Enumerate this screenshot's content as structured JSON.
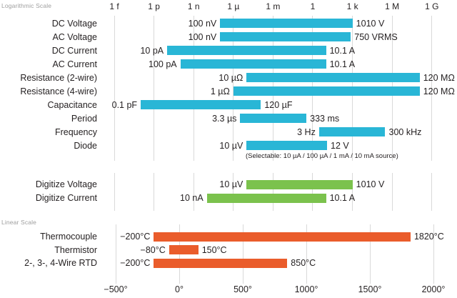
{
  "chart_data": {
    "type": "bar",
    "subtype": "horizontal-range-bars",
    "title": "",
    "grid": true,
    "colors": {
      "log_bar": "#29b6d6",
      "digitize_bar": "#7bc24d",
      "linear_bar": "#ea5c2b",
      "gridline": "#d9d9d9",
      "text": "#231f20",
      "muted_text": "#9e9e9e"
    },
    "log_section": {
      "title": "Logarithmic Scale",
      "axis": {
        "position": "top",
        "scale": "log10",
        "ticks": [
          {
            "label": "1 f",
            "exp": -15
          },
          {
            "label": "1 p",
            "exp": -12
          },
          {
            "label": "1 n",
            "exp": -9
          },
          {
            "label": "1 µ",
            "exp": -6
          },
          {
            "label": "1 m",
            "exp": -3
          },
          {
            "label": "1",
            "exp": 0
          },
          {
            "label": "1 k",
            "exp": 3
          },
          {
            "label": "1 M",
            "exp": 6
          },
          {
            "label": "1 G",
            "exp": 9
          }
        ]
      },
      "rows": [
        {
          "label": "DC Voltage",
          "min": {
            "text": "100 nV",
            "value": 1e-07
          },
          "max": {
            "text": "1010 V",
            "value": 1010
          }
        },
        {
          "label": "AC Voltage",
          "min": {
            "text": "100 nV",
            "value": 1e-07
          },
          "max": {
            "text": "750 VRMS",
            "value": 750
          }
        },
        {
          "label": "DC Current",
          "min": {
            "text": "10 pA",
            "value": 1e-11
          },
          "max": {
            "text": "10.1 A",
            "value": 10.1
          }
        },
        {
          "label": "AC Current",
          "min": {
            "text": "100 pA",
            "value": 1e-10
          },
          "max": {
            "text": "10.1 A",
            "value": 10.1
          }
        },
        {
          "label": "Resistance (2-wire)",
          "min": {
            "text": "10 µΩ",
            "value": 1e-05
          },
          "max": {
            "text": "120 MΩ",
            "value": 120000000.0
          }
        },
        {
          "label": "Resistance (4-wire)",
          "min": {
            "text": "1 µΩ",
            "value": 1e-06
          },
          "max": {
            "text": "120 MΩ",
            "value": 120000000.0
          }
        },
        {
          "label": "Capacitance",
          "min": {
            "text": "0.1 pF",
            "value": 1e-13
          },
          "max": {
            "text": "120 µF",
            "value": 0.00012
          }
        },
        {
          "label": "Period",
          "min": {
            "text": "3.3 µs",
            "value": 3.3e-06
          },
          "max": {
            "text": "333 ms",
            "value": 0.333
          }
        },
        {
          "label": "Frequency",
          "min": {
            "text": "3 Hz",
            "value": 3
          },
          "max": {
            "text": "300 kHz",
            "value": 300000.0
          }
        },
        {
          "label": "Diode",
          "min": {
            "text": "10 µV",
            "value": 1e-05
          },
          "max": {
            "text": "12 V",
            "value": 12
          }
        }
      ],
      "note": "(Selectable: 10 µA / 100 µA / 1 mA / 10 mA source)"
    },
    "digitize_section": {
      "rows": [
        {
          "label": "Digitize Voltage",
          "min": {
            "text": "10 µV",
            "value": 1e-05
          },
          "max": {
            "text": "1010 V",
            "value": 1010
          }
        },
        {
          "label": "Digitize Current",
          "min": {
            "text": "10 nA",
            "value": 1e-08
          },
          "max": {
            "text": "10.1 A",
            "value": 10.1
          }
        }
      ]
    },
    "linear_section": {
      "title": "Linear Scale",
      "axis": {
        "position": "bottom",
        "scale": "linear",
        "range": [
          -500,
          2000
        ],
        "ticks": [
          {
            "label": "−500°",
            "value": -500
          },
          {
            "label": "0°",
            "value": 0
          },
          {
            "label": "500°",
            "value": 500
          },
          {
            "label": "1000°",
            "value": 1000
          },
          {
            "label": "1500°",
            "value": 1500
          },
          {
            "label": "2000°",
            "value": 2000
          }
        ]
      },
      "rows": [
        {
          "label": "Thermocouple",
          "min": {
            "text": "−200°C",
            "value": -200
          },
          "max": {
            "text": "1820°C",
            "value": 1820
          }
        },
        {
          "label": "Thermistor",
          "min": {
            "text": "−80°C",
            "value": -80
          },
          "max": {
            "text": "150°C",
            "value": 150
          }
        },
        {
          "label": "2-, 3-, 4-Wire RTD",
          "min": {
            "text": "−200°C",
            "value": -200
          },
          "max": {
            "text": "850°C",
            "value": 850
          }
        }
      ]
    }
  }
}
